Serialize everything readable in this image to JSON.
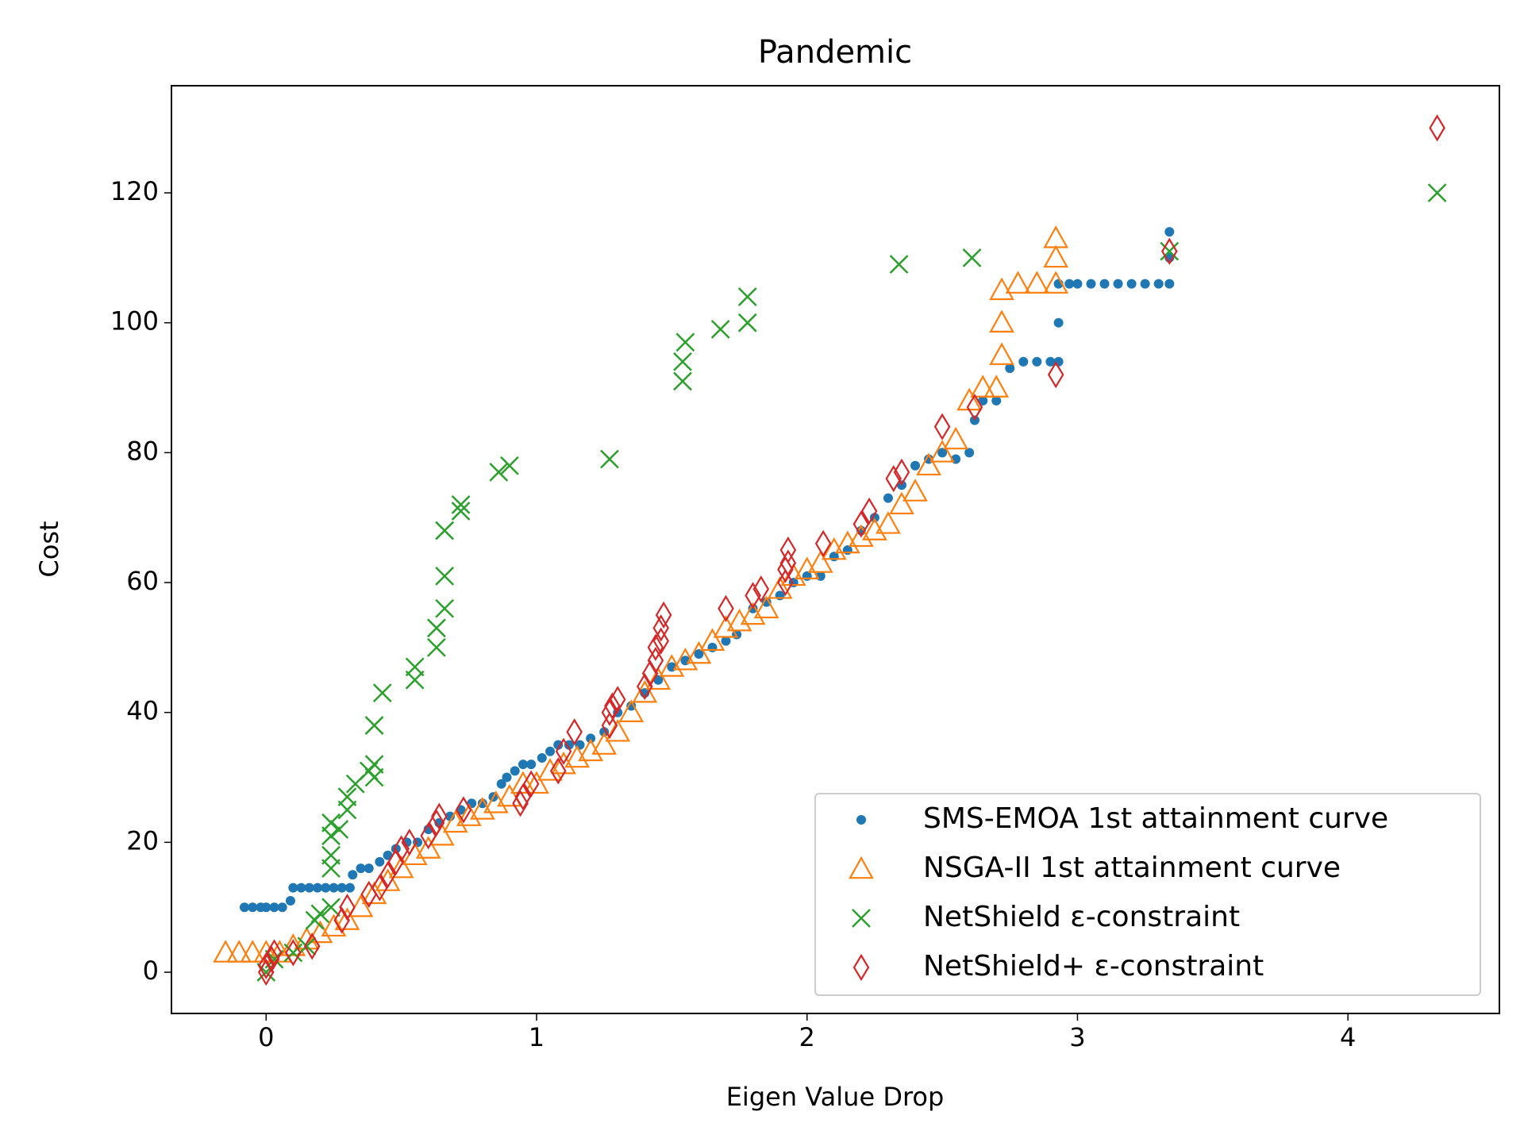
{
  "chart_data": {
    "type": "scatter",
    "title": "Pandemic",
    "x_label": "Eigen Value Drop",
    "y_label": "Cost",
    "xlim": [
      -0.35,
      4.56
    ],
    "ylim": [
      -6.35,
      136.5
    ],
    "xticks": [
      0,
      1,
      2,
      3,
      4
    ],
    "yticks": [
      0,
      20,
      40,
      60,
      80,
      100,
      120
    ],
    "legend": "lower right",
    "series": [
      {
        "name": "SMS-EMOA 1st attainment curve",
        "color": "#1f77b4",
        "marker": "dot",
        "x": [
          -0.08,
          -0.05,
          -0.02,
          0,
          0.03,
          0.06,
          0.09,
          0.1,
          0.13,
          0.16,
          0.19,
          0.22,
          0.25,
          0.28,
          0.31,
          0.32,
          0.35,
          0.38,
          0.42,
          0.45,
          0.48,
          0.52,
          0.56,
          0.6,
          0.64,
          0.68,
          0.72,
          0.76,
          0.8,
          0.84,
          0.87,
          0.89,
          0.92,
          0.95,
          0.98,
          1.02,
          1.05,
          1.08,
          1.12,
          1.16,
          1.2,
          1.25,
          1.3,
          1.35,
          1.4,
          1.45,
          1.5,
          1.55,
          1.6,
          1.65,
          1.7,
          1.74,
          1.8,
          1.85,
          1.9,
          1.95,
          2.0,
          2.05,
          2.1,
          2.15,
          2.2,
          2.25,
          2.3,
          2.35,
          2.4,
          2.45,
          2.5,
          2.55,
          2.6,
          2.62,
          2.65,
          2.7,
          2.75,
          2.8,
          2.85,
          2.9,
          2.93,
          2.93,
          2.93,
          2.97,
          3.0,
          3.05,
          3.1,
          3.15,
          3.2,
          3.25,
          3.3,
          3.34,
          3.34,
          3.34
        ],
        "y": [
          10,
          10,
          10,
          10,
          10,
          10,
          11,
          13,
          13,
          13,
          13,
          13,
          13,
          13,
          13,
          15,
          16,
          16,
          17,
          18,
          19,
          20,
          20,
          22,
          23,
          24,
          25,
          26,
          26,
          27,
          29,
          30,
          31,
          32,
          32,
          33,
          34,
          35,
          35,
          35,
          36,
          37,
          40,
          41,
          43,
          45,
          47,
          48,
          49,
          50,
          51,
          52,
          56,
          57,
          58,
          60,
          61,
          61,
          64,
          65,
          68,
          70,
          73,
          75,
          78,
          79,
          80,
          79,
          80,
          85,
          88,
          88,
          93,
          94,
          94,
          94,
          94,
          100,
          106,
          106,
          106,
          106,
          106,
          106,
          106,
          106,
          106,
          106,
          110,
          114
        ]
      },
      {
        "name": "NSGA-II 1st attainment curve",
        "color": "#ff7f0e",
        "marker": "triangle",
        "x": [
          -0.15,
          -0.1,
          -0.05,
          0,
          0.05,
          0.1,
          0.15,
          0.2,
          0.25,
          0.3,
          0.35,
          0.4,
          0.45,
          0.5,
          0.55,
          0.6,
          0.65,
          0.7,
          0.75,
          0.8,
          0.85,
          0.9,
          0.95,
          1.0,
          1.05,
          1.1,
          1.15,
          1.2,
          1.25,
          1.3,
          1.35,
          1.4,
          1.45,
          1.5,
          1.55,
          1.6,
          1.65,
          1.7,
          1.75,
          1.8,
          1.85,
          1.9,
          1.95,
          2.0,
          2.05,
          2.1,
          2.15,
          2.2,
          2.25,
          2.3,
          2.35,
          2.4,
          2.45,
          2.5,
          2.55,
          2.6,
          2.65,
          2.7,
          2.72,
          2.72,
          2.72,
          2.78,
          2.85,
          2.92,
          2.92,
          2.92
        ],
        "y": [
          3,
          3,
          3,
          3,
          3,
          4,
          5,
          6,
          7,
          8,
          10,
          12,
          14,
          16,
          18,
          19,
          21,
          23,
          24,
          25,
          26,
          27,
          29,
          29,
          31,
          32,
          33,
          34,
          35,
          37,
          40,
          43,
          45,
          47,
          48,
          49,
          51,
          53,
          54,
          55,
          56,
          59,
          61,
          62,
          63,
          65,
          66,
          67,
          68,
          69,
          72,
          74,
          78,
          80,
          82,
          88,
          90,
          90,
          95,
          100,
          105,
          106,
          106,
          106,
          110,
          113
        ]
      },
      {
        "name": "NetShield ε-constraint",
        "color": "#2ca02c",
        "marker": "x",
        "x": [
          0,
          0.03,
          0.1,
          0.15,
          0.18,
          0.2,
          0.24,
          0.24,
          0.24,
          0.24,
          0.24,
          0.27,
          0.3,
          0.3,
          0.33,
          0.38,
          0.4,
          0.4,
          0.4,
          0.43,
          0.55,
          0.55,
          0.63,
          0.63,
          0.66,
          0.66,
          0.66,
          0.72,
          0.72,
          0.86,
          0.9,
          1.27,
          1.54,
          1.54,
          1.55,
          1.68,
          1.78,
          1.78,
          2.34,
          2.61,
          3.34,
          4.33
        ],
        "y": [
          0,
          2,
          3,
          4,
          8,
          9,
          10,
          16,
          18,
          21,
          23,
          22,
          25,
          27,
          29,
          31,
          32,
          30,
          38,
          43,
          45,
          47,
          50,
          53,
          56,
          61,
          68,
          71,
          72,
          77,
          78,
          79,
          91,
          94,
          97,
          99,
          100,
          104,
          109,
          110,
          111,
          120
        ]
      },
      {
        "name": "NetShield+ ε-constraint",
        "color": "#d62728",
        "marker": "diamond",
        "x": [
          0,
          0,
          0.02,
          0.03,
          0.1,
          0.17,
          0.28,
          0.3,
          0.38,
          0.42,
          0.45,
          0.48,
          0.5,
          0.53,
          0.6,
          0.63,
          0.64,
          0.73,
          0.94,
          0.95,
          0.98,
          1.08,
          1.1,
          1.14,
          1.27,
          1.27,
          1.28,
          1.3,
          1.4,
          1.42,
          1.44,
          1.44,
          1.46,
          1.46,
          1.47,
          1.7,
          1.8,
          1.83,
          1.92,
          1.92,
          1.93,
          1.93,
          2.06,
          2.2,
          2.23,
          2.32,
          2.35,
          2.5,
          2.62,
          2.92,
          3.34,
          4.33
        ],
        "y": [
          0,
          1,
          2,
          3,
          3,
          4,
          8,
          10,
          12,
          13,
          15,
          17,
          19,
          20,
          21,
          23,
          24,
          25,
          26,
          27,
          29,
          31,
          34,
          37,
          38,
          40,
          41,
          42,
          44,
          46,
          48,
          50,
          51,
          53,
          55,
          56,
          58,
          59,
          60,
          62,
          63,
          65,
          66,
          69,
          71,
          76,
          77,
          84,
          87,
          92,
          111,
          130
        ]
      }
    ]
  }
}
